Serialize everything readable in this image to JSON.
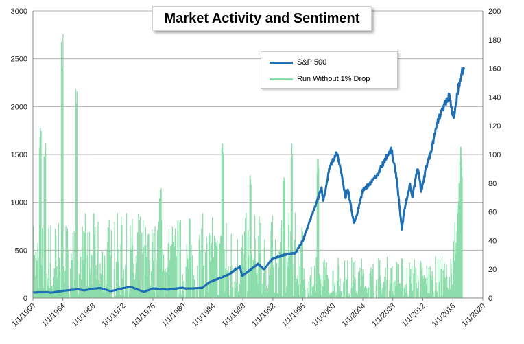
{
  "chart_data": {
    "type": "line",
    "title": "Market Activity and Sentiment",
    "x_ticks": [
      "1/1/1960",
      "1/1/1964",
      "1/1/1968",
      "1/1/1972",
      "1/1/1976",
      "1/1/1980",
      "1/1/1984",
      "1/1/1988",
      "1/1/1992",
      "1/1/1996",
      "1/1/2000",
      "1/1/2004",
      "1/1/2008",
      "1/1/2012",
      "1/1/2016",
      "1/1/2020"
    ],
    "xlim": [
      1960,
      2020
    ],
    "y_left": {
      "lim": [
        0,
        3000
      ],
      "ticks": [
        "0",
        "500",
        "1000",
        "1500",
        "2000",
        "2500",
        "3000"
      ]
    },
    "y_right": {
      "lim": [
        0,
        200
      ],
      "ticks": [
        "0",
        "20",
        "40",
        "60",
        "80",
        "100",
        "120",
        "140",
        "160",
        "180",
        "200"
      ]
    },
    "grid": true,
    "legend": "top-center",
    "series": [
      {
        "name": "S&P 500",
        "axis": "left",
        "color": "#1f6fb5",
        "points": [
          [
            1960.0,
            58
          ],
          [
            1962.0,
            62
          ],
          [
            1962.4,
            55
          ],
          [
            1964.0,
            75
          ],
          [
            1966.0,
            92
          ],
          [
            1966.8,
            80
          ],
          [
            1968.0,
            97
          ],
          [
            1969.0,
            103
          ],
          [
            1970.4,
            72
          ],
          [
            1972.0,
            102
          ],
          [
            1973.0,
            118
          ],
          [
            1974.8,
            65
          ],
          [
            1976.0,
            100
          ],
          [
            1978.0,
            88
          ],
          [
            1980.0,
            108
          ],
          [
            1980.3,
            98
          ],
          [
            1982.6,
            105
          ],
          [
            1983.5,
            165
          ],
          [
            1986.0,
            240
          ],
          [
            1987.6,
            330
          ],
          [
            1987.9,
            230
          ],
          [
            1990.0,
            355
          ],
          [
            1990.8,
            300
          ],
          [
            1992.0,
            415
          ],
          [
            1994.0,
            460
          ],
          [
            1995.0,
            470
          ],
          [
            1996.0,
            600
          ],
          [
            1997.0,
            820
          ],
          [
            1998.5,
            1150
          ],
          [
            1998.7,
            1000
          ],
          [
            1999.5,
            1350
          ],
          [
            2000.5,
            1520
          ],
          [
            2001.0,
            1350
          ],
          [
            2001.7,
            1050
          ],
          [
            2002.0,
            1150
          ],
          [
            2002.8,
            780
          ],
          [
            2003.1,
            840
          ],
          [
            2004.0,
            1130
          ],
          [
            2005.0,
            1200
          ],
          [
            2006.0,
            1300
          ],
          [
            2007.0,
            1450
          ],
          [
            2007.8,
            1560
          ],
          [
            2008.5,
            1250
          ],
          [
            2009.2,
            720
          ],
          [
            2009.6,
            950
          ],
          [
            2010.3,
            1190
          ],
          [
            2010.6,
            1050
          ],
          [
            2011.3,
            1360
          ],
          [
            2011.8,
            1120
          ],
          [
            2012.5,
            1380
          ],
          [
            2013.0,
            1500
          ],
          [
            2014.0,
            1850
          ],
          [
            2014.5,
            1950
          ],
          [
            2015.5,
            2120
          ],
          [
            2016.1,
            1870
          ],
          [
            2016.7,
            2180
          ],
          [
            2017.2,
            2370
          ],
          [
            2017.5,
            2390
          ]
        ]
      },
      {
        "name": "Run Without 1% Drop",
        "axis": "right",
        "color": "#86dba6"
      }
    ]
  }
}
